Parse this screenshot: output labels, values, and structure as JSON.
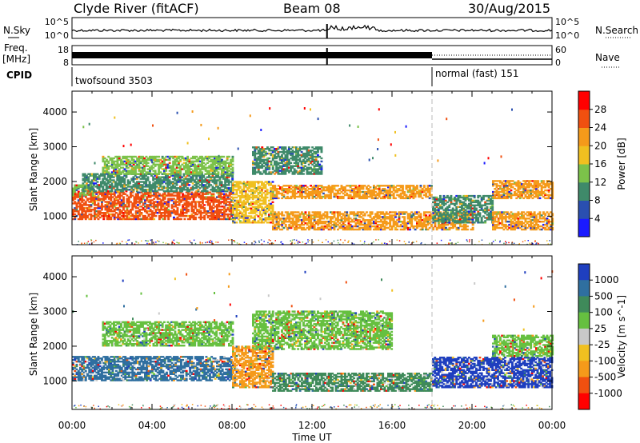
{
  "header": {
    "station": "Clyde River (fitACF)",
    "beam": "Beam 08",
    "date": "30/Aug/2015"
  },
  "top_panels": {
    "nsky_label": "N.Sky",
    "nsearch_label": "N.Search",
    "freq_label_1": "Freq.",
    "freq_label_2": "[MHz]",
    "nave_label": "Nave",
    "cpid_label": "CPID",
    "noise_ticks_left": [
      "10^5",
      "10^0"
    ],
    "noise_ticks_right": [
      "10^5",
      "10^0"
    ],
    "freq_ticks": [
      "18",
      "8"
    ],
    "nave_ticks": [
      "60",
      "0"
    ],
    "cpid_segments": [
      {
        "name": "twofsound",
        "id": "3503",
        "start_h": 0,
        "end_h": 18
      },
      {
        "name": "normal (fast)",
        "id": "151",
        "start_h": 18,
        "end_h": 24
      }
    ]
  },
  "axes": {
    "xlabel": "Time UT",
    "x_ticks": [
      "00:00",
      "04:00",
      "08:00",
      "12:00",
      "16:00",
      "20:00",
      "00:00"
    ],
    "ylabel": "Slant Range [km]",
    "y_ticks": [
      "1000",
      "2000",
      "3000",
      "4000"
    ]
  },
  "chart_data": [
    {
      "type": "heatmap",
      "parameter": "Power",
      "colorbar_label": "Power [dB]",
      "x_range_hours": [
        0,
        24
      ],
      "ylim": [
        180,
        4600
      ],
      "colorbar_ticks": [
        "4",
        "8",
        "12",
        "16",
        "20",
        "24",
        "28"
      ],
      "colorbar_colors": [
        "#1a1aff",
        "#2a4fb0",
        "#3f8a6a",
        "#7cc24a",
        "#f0c020",
        "#f59a1a",
        "#f05010",
        "#ff0000"
      ],
      "bands": [
        {
          "t_start": 0.0,
          "t_end": 8.0,
          "r_start": 900,
          "r_end": 1700,
          "level": "28"
        },
        {
          "t_start": 0.0,
          "t_end": 1.0,
          "r_start": 1600,
          "r_end": 1900,
          "level": "16"
        },
        {
          "t_start": 0.5,
          "t_end": 8.0,
          "r_start": 1700,
          "r_end": 2200,
          "level": "12"
        },
        {
          "t_start": 1.5,
          "t_end": 8.0,
          "r_start": 2200,
          "r_end": 2700,
          "level": "16"
        },
        {
          "t_start": 8.0,
          "t_end": 10.0,
          "r_start": 800,
          "r_end": 2000,
          "level": "20"
        },
        {
          "t_start": 9.0,
          "t_end": 12.5,
          "r_start": 2200,
          "r_end": 3000,
          "level": "12"
        },
        {
          "t_start": 10.0,
          "t_end": 18.0,
          "r_start": 1500,
          "r_end": 1900,
          "level": "24"
        },
        {
          "t_start": 10.0,
          "t_end": 20.0,
          "r_start": 600,
          "r_end": 1100,
          "level": "24"
        },
        {
          "t_start": 18.0,
          "t_end": 21.0,
          "r_start": 800,
          "r_end": 1600,
          "level": "12"
        },
        {
          "t_start": 21.0,
          "t_end": 24.0,
          "r_start": 1500,
          "r_end": 2000,
          "level": "24"
        },
        {
          "t_start": 21.0,
          "t_end": 24.0,
          "r_start": 600,
          "r_end": 1100,
          "level": "24"
        }
      ]
    },
    {
      "type": "heatmap",
      "parameter": "Velocity",
      "colorbar_label": "Velocity [m s^-1]",
      "x_range_hours": [
        0,
        24
      ],
      "ylim": [
        180,
        4600
      ],
      "colorbar_ticks": [
        "1000",
        "500",
        "100",
        "25",
        "-25",
        "-100",
        "-500",
        "-1000"
      ],
      "colorbar_colors": [
        "#1f3fbf",
        "#2f6fa0",
        "#3f8a5a",
        "#66c040",
        "#c8c8c8",
        "#f0c020",
        "#f59a1a",
        "#f05010",
        "#ff0000"
      ],
      "bands": [
        {
          "t_start": 0.0,
          "t_end": 8.0,
          "r_start": 1000,
          "r_end": 1700,
          "level": "500"
        },
        {
          "t_start": 1.5,
          "t_end": 8.0,
          "r_start": 2000,
          "r_end": 2700,
          "level": "25"
        },
        {
          "t_start": 8.0,
          "t_end": 10.0,
          "r_start": 800,
          "r_end": 2000,
          "level": "-500"
        },
        {
          "t_start": 9.0,
          "t_end": 16.0,
          "r_start": 1900,
          "r_end": 3000,
          "level": "25"
        },
        {
          "t_start": 10.0,
          "t_end": 18.0,
          "r_start": 700,
          "r_end": 1200,
          "level": "100"
        },
        {
          "t_start": 18.0,
          "t_end": 24.0,
          "r_start": 800,
          "r_end": 1700,
          "level": "1000"
        },
        {
          "t_start": 21.0,
          "t_end": 24.0,
          "r_start": 1700,
          "r_end": 2300,
          "level": "25"
        }
      ]
    }
  ]
}
